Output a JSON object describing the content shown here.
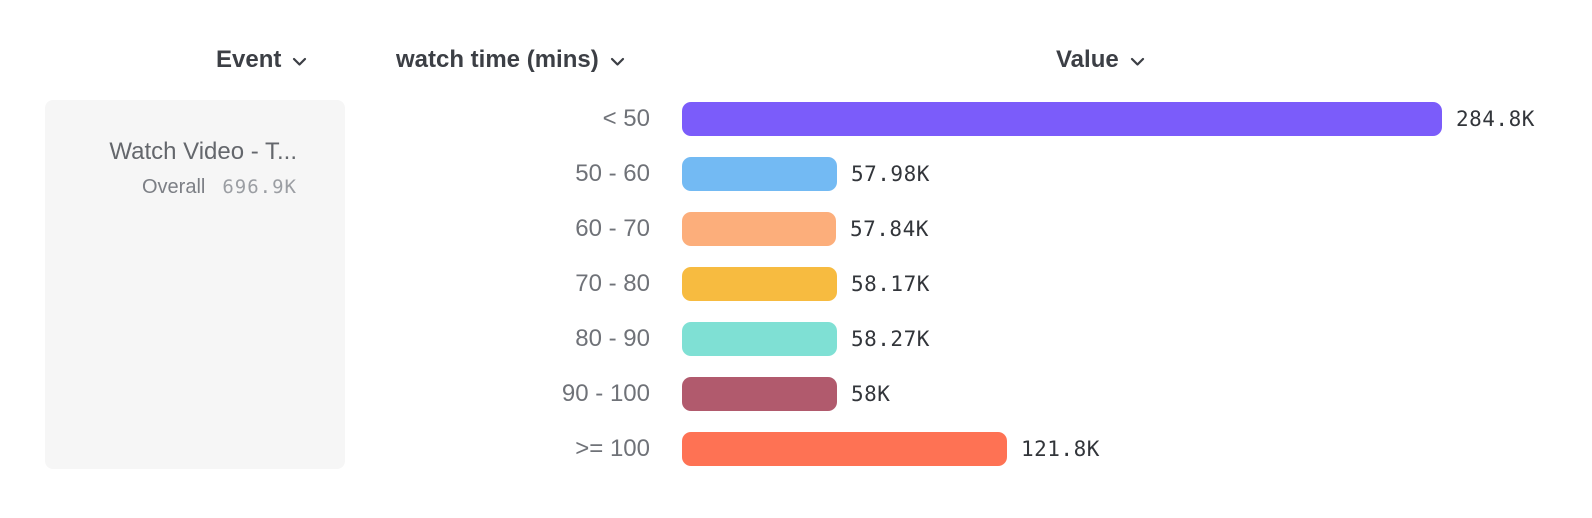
{
  "header": {
    "columns": [
      {
        "label": "Event"
      },
      {
        "label": "watch time (mins)"
      },
      {
        "label": "Value"
      }
    ]
  },
  "event_card": {
    "title": "Watch Video - T...",
    "overall_label": "Overall",
    "overall_value": "696.9K"
  },
  "chart_data": {
    "type": "bar",
    "orientation": "horizontal",
    "title": "",
    "xlabel": "Value",
    "ylabel": "watch time (mins)",
    "categories": [
      "< 50",
      "50 - 60",
      "60 - 70",
      "70 - 80",
      "80 - 90",
      "90 - 100",
      ">= 100"
    ],
    "values": [
      284800,
      57980,
      57840,
      58170,
      58270,
      58000,
      121800
    ],
    "value_labels": [
      "284.8K",
      "57.98K",
      "57.84K",
      "58.17K",
      "58.27K",
      "58K",
      "121.8K"
    ],
    "bar_colors": [
      "#7B5CFA",
      "#73BAF3",
      "#FCAE7B",
      "#F7BB40",
      "#7FE0D4",
      "#B15A6D",
      "#FE7254"
    ],
    "xlim": [
      0,
      284800
    ],
    "grid": false,
    "legend": "none"
  },
  "colors": {
    "header_text": "#3c3f45",
    "bucket_label": "#6f7278",
    "value_label": "#32353a",
    "card_background": "#f6f6f6",
    "card_title": "#64676c",
    "card_overall": "#9b9ea3"
  },
  "icons": {
    "chevron_down": "v"
  }
}
